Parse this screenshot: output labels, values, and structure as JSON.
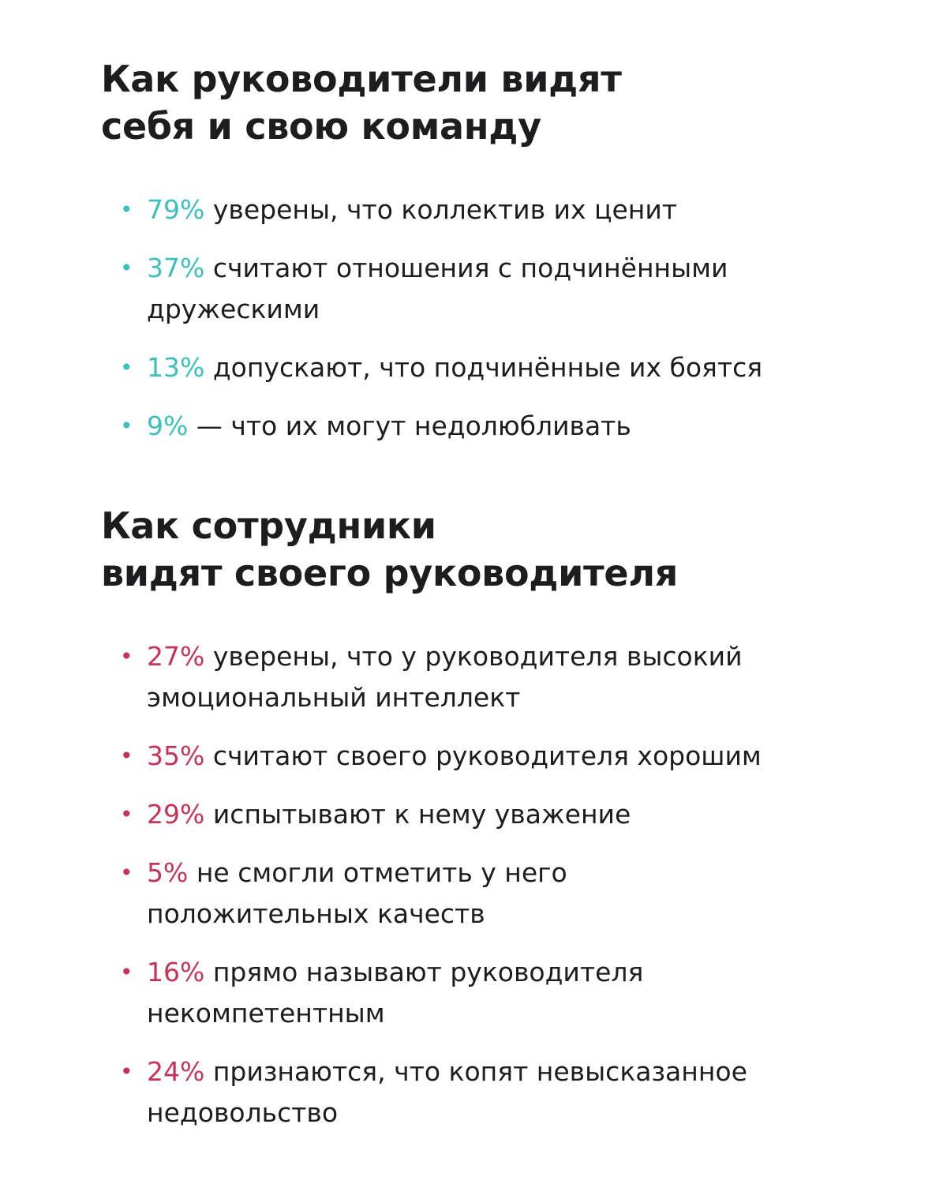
{
  "colors": {
    "accent_teal": "#3cc0be",
    "accent_crimson": "#c8325a",
    "text": "#1d1d1f",
    "background": "#ffffff"
  },
  "section_managers": {
    "title_line1": "Как руководители видят",
    "title_line2": "себя и свою команду",
    "items": [
      {
        "percent": "79%",
        "text": " уверены, что коллектив их ценит"
      },
      {
        "percent": "37%",
        "text": " считают отношения с подчинёнными дружескими"
      },
      {
        "percent": "13%",
        "text": " допускают, что подчинённые их боятся"
      },
      {
        "percent": "9%",
        "text": " — что их могут недолюбливать"
      }
    ]
  },
  "section_employees": {
    "title_line1": "Как сотрудники",
    "title_line2": "видят своего руководителя",
    "items": [
      {
        "percent": "27%",
        "text": " уверены, что у руководителя высокий эмоциональный интеллект"
      },
      {
        "percent": "35%",
        "text": " считают своего руководителя хорошим"
      },
      {
        "percent": "29%",
        "text": " испытывают к нему уважение"
      },
      {
        "percent": "5%",
        "text": " не смогли отметить у него положительных качеств"
      },
      {
        "percent": "16%",
        "text": " прямо называют руководителя некомпетентным"
      },
      {
        "percent": "24%",
        "text": " признаются, что копят невысказанное недовольство"
      }
    ]
  }
}
